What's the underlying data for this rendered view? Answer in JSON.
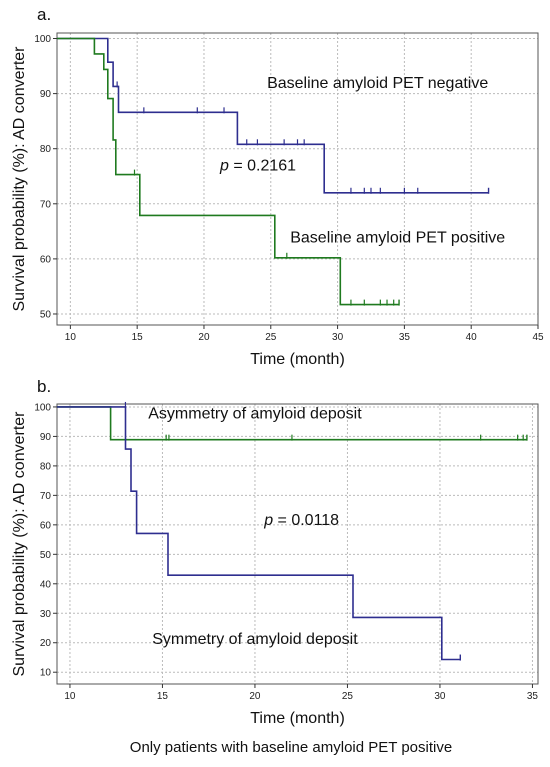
{
  "chart_data": [
    {
      "type": "line",
      "panel_label": "a.",
      "xlabel": "Time (month)",
      "ylabel": "Survival probability (%): AD converter",
      "xlim": [
        9,
        45
      ],
      "ylim": [
        48,
        101
      ],
      "xticks": [
        10,
        15,
        20,
        25,
        30,
        35,
        40,
        45
      ],
      "yticks": [
        50,
        60,
        70,
        80,
        90,
        100
      ],
      "grid": true,
      "p_value": {
        "prefix": "p",
        "text": " = 0.2161",
        "x": 21.2,
        "y": 76
      },
      "series": [
        {
          "name": "Baseline amyloid PET negative",
          "color": "#2e2e8f",
          "label_pos": {
            "x": 33,
            "y": 91
          },
          "steps": [
            [
              9,
              100
            ],
            [
              12.8,
              100
            ],
            [
              12.8,
              95.7
            ],
            [
              13.2,
              95.7
            ],
            [
              13.2,
              91.3
            ],
            [
              13.6,
              91.3
            ],
            [
              13.6,
              86.6
            ],
            [
              22.5,
              86.6
            ],
            [
              22.5,
              80.8
            ],
            [
              29.0,
              80.8
            ],
            [
              29.0,
              72.0
            ],
            [
              41.3,
              72.0
            ]
          ],
          "end_tick": 41.3,
          "censors": [
            [
              13.5,
              91.3
            ],
            [
              15.5,
              86.6
            ],
            [
              19.5,
              86.6
            ],
            [
              21.5,
              86.6
            ],
            [
              23.2,
              80.8
            ],
            [
              24.0,
              80.8
            ],
            [
              26.0,
              80.8
            ],
            [
              27.0,
              80.8
            ],
            [
              27.5,
              80.8
            ],
            [
              31.0,
              72.0
            ],
            [
              32.0,
              72.0
            ],
            [
              32.5,
              72.0
            ],
            [
              33.2,
              72.0
            ],
            [
              35.0,
              72.0
            ],
            [
              36.0,
              72.0
            ]
          ]
        },
        {
          "name": "Baseline amyloid PET positive",
          "color": "#1f7a1f",
          "label_pos": {
            "x": 34.5,
            "y": 63
          },
          "steps": [
            [
              9,
              100
            ],
            [
              11.8,
              100
            ],
            [
              11.8,
              97.2
            ],
            [
              12.5,
              97.2
            ],
            [
              12.5,
              94.4
            ],
            [
              12.8,
              94.4
            ],
            [
              12.8,
              89.1
            ],
            [
              13.2,
              89.1
            ],
            [
              13.2,
              81.6
            ],
            [
              13.4,
              81.6
            ],
            [
              13.4,
              75.3
            ],
            [
              15.2,
              75.3
            ],
            [
              15.2,
              67.9
            ],
            [
              25.3,
              67.9
            ],
            [
              25.3,
              60.2
            ],
            [
              30.2,
              60.2
            ],
            [
              30.2,
              51.7
            ],
            [
              34.6,
              51.7
            ]
          ],
          "end_tick": 34.6,
          "censors": [
            [
              14.8,
              75.3
            ],
            [
              26.2,
              60.2
            ],
            [
              31.0,
              51.7
            ],
            [
              32.0,
              51.7
            ],
            [
              33.2,
              51.7
            ],
            [
              33.7,
              51.7
            ],
            [
              34.2,
              51.7
            ]
          ]
        }
      ]
    },
    {
      "type": "line",
      "panel_label": "b.",
      "xlabel": "Time (month)",
      "ylabel": "Survival probability (%): AD converter",
      "xlim": [
        9.3,
        35.3
      ],
      "ylim": [
        6,
        101
      ],
      "xticks": [
        10,
        15,
        20,
        25,
        30,
        35
      ],
      "yticks": [
        10,
        20,
        30,
        40,
        50,
        60,
        70,
        80,
        90,
        100
      ],
      "grid": true,
      "p_value": {
        "prefix": "p",
        "text": " = 0.0118",
        "x": 20.5,
        "y": 60
      },
      "series": [
        {
          "name": "Asymmetry of amyloid deposit",
          "color": "#1f7a1f",
          "label_pos": {
            "x": 20,
            "y": 96
          },
          "steps": [
            [
              9.3,
              100
            ],
            [
              12.2,
              100
            ],
            [
              12.2,
              88.9
            ],
            [
              34.7,
              88.9
            ]
          ],
          "end_tick": 34.7,
          "censors": [
            [
              15.2,
              88.9
            ],
            [
              15.35,
              88.9
            ],
            [
              22.0,
              88.9
            ],
            [
              32.2,
              88.9
            ],
            [
              34.2,
              88.9
            ],
            [
              34.5,
              88.9
            ]
          ]
        },
        {
          "name": "Symmetry of amyloid deposit",
          "color": "#2e2e8f",
          "label_pos": {
            "x": 20,
            "y": 19.5
          },
          "steps": [
            [
              9.3,
              100
            ],
            [
              13.0,
              100
            ],
            [
              13.0,
              85.7
            ],
            [
              13.3,
              85.7
            ],
            [
              13.3,
              71.4
            ],
            [
              13.6,
              71.4
            ],
            [
              13.6,
              57.1
            ],
            [
              15.3,
              57.1
            ],
            [
              15.3,
              42.9
            ],
            [
              25.3,
              42.9
            ],
            [
              25.3,
              28.6
            ],
            [
              30.1,
              28.6
            ],
            [
              30.1,
              14.3
            ],
            [
              31.1,
              14.3
            ]
          ],
          "end_tick": 31.1,
          "censors": [
            [
              13.0,
              100
            ]
          ]
        }
      ]
    }
  ],
  "caption": "Only patients with baseline amyloid PET positive"
}
